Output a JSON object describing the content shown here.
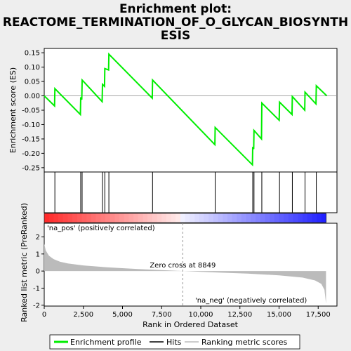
{
  "chart_data": {
    "type": "line",
    "title_lines": [
      "Enrichment plot:",
      "REACTOME_TERMINATION_OF_O_GLYCAN_BIOSYNTH",
      "ESIS"
    ],
    "xlabel": "Rank in Ordered Dataset",
    "ylabel_top": "Enrichment score (ES)",
    "ylabel_bottom": "Ranked list metric (PreRanked)",
    "xlim": [
      0,
      18700
    ],
    "es_ylim": [
      -0.265,
      0.165
    ],
    "metric_ylim": [
      -2.05,
      2.8
    ],
    "x_ticks": [
      0,
      2500,
      5000,
      7500,
      10000,
      12500,
      15000,
      17500
    ],
    "x_tick_labels": [
      "0",
      "2,500",
      "5,000",
      "7,500",
      "10,000",
      "12,500",
      "15,000",
      "17,500"
    ],
    "es_ticks": [
      0.15,
      0.1,
      0.05,
      0.0,
      -0.05,
      -0.1,
      -0.15,
      -0.2,
      -0.25
    ],
    "es_tick_labels": [
      "0.15",
      "0.10",
      "0.05",
      "0.00",
      "-0.05",
      "-0.10",
      "-0.15",
      "-0.20",
      "-0.25"
    ],
    "metric_ticks": [
      2,
      1,
      0,
      -1,
      -2
    ],
    "metric_tick_labels": [
      "2",
      "1",
      "0",
      "-1",
      "-2"
    ],
    "hits": [
      680,
      2330,
      2420,
      3720,
      3870,
      4130,
      6920,
      10920,
      13320,
      13400,
      13900,
      15030,
      15850,
      16660,
      17380
    ],
    "es_points": [
      [
        0,
        0.0
      ],
      [
        660,
        -0.035
      ],
      [
        680,
        0.025
      ],
      [
        2310,
        -0.065
      ],
      [
        2330,
        -0.005
      ],
      [
        2400,
        -0.013
      ],
      [
        2420,
        0.055
      ],
      [
        3700,
        -0.02
      ],
      [
        3720,
        0.04
      ],
      [
        3850,
        0.033
      ],
      [
        3870,
        0.095
      ],
      [
        4110,
        0.09
      ],
      [
        4130,
        0.145
      ],
      [
        6900,
        -0.008
      ],
      [
        6920,
        0.055
      ],
      [
        10900,
        -0.17
      ],
      [
        10920,
        -0.11
      ],
      [
        13300,
        -0.24
      ],
      [
        13320,
        -0.178
      ],
      [
        13380,
        -0.185
      ],
      [
        13400,
        -0.12
      ],
      [
        13880,
        -0.15
      ],
      [
        13900,
        -0.025
      ],
      [
        15010,
        -0.085
      ],
      [
        15030,
        -0.022
      ],
      [
        15830,
        -0.065
      ],
      [
        15850,
        -0.002
      ],
      [
        16640,
        -0.05
      ],
      [
        16660,
        0.013
      ],
      [
        17360,
        -0.028
      ],
      [
        17380,
        0.035
      ],
      [
        18050,
        0.0
      ]
    ],
    "metric_curve": [
      [
        0,
        1.6
      ],
      [
        100,
        1.2
      ],
      [
        300,
        0.9
      ],
      [
        600,
        0.7
      ],
      [
        1000,
        0.55
      ],
      [
        1500,
        0.45
      ],
      [
        2500,
        0.33
      ],
      [
        4000,
        0.22
      ],
      [
        6000,
        0.12
      ],
      [
        8849,
        0.0
      ],
      [
        11000,
        -0.08
      ],
      [
        13000,
        -0.15
      ],
      [
        15000,
        -0.25
      ],
      [
        16500,
        -0.38
      ],
      [
        17300,
        -0.55
      ],
      [
        17700,
        -0.75
      ],
      [
        17900,
        -1.1
      ],
      [
        18000,
        -1.9
      ]
    ],
    "zero_cross_rank": 8849,
    "zero_cross_label": "Zero cross at 8849",
    "pos_label": "'na_pos' (positively correlated)",
    "neg_label": "'na_neg' (negatively correlated)",
    "legend": [
      "Enrichment profile",
      "Hits",
      "Ranking metric scores"
    ],
    "colors": {
      "es_line": "#00ee00",
      "hit_line": "#000000",
      "metric_fill": "#bbbbbb",
      "pos_label": "#cc0000",
      "neg_label": "#0000cc",
      "zero_line": "#999999"
    }
  }
}
